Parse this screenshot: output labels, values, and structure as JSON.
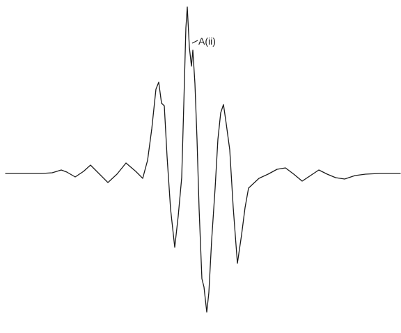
{
  "figure": {
    "annotation": "A(ii)",
    "colors": {
      "background": "#ffffff",
      "trace": "#1a1a1a"
    }
  }
}
